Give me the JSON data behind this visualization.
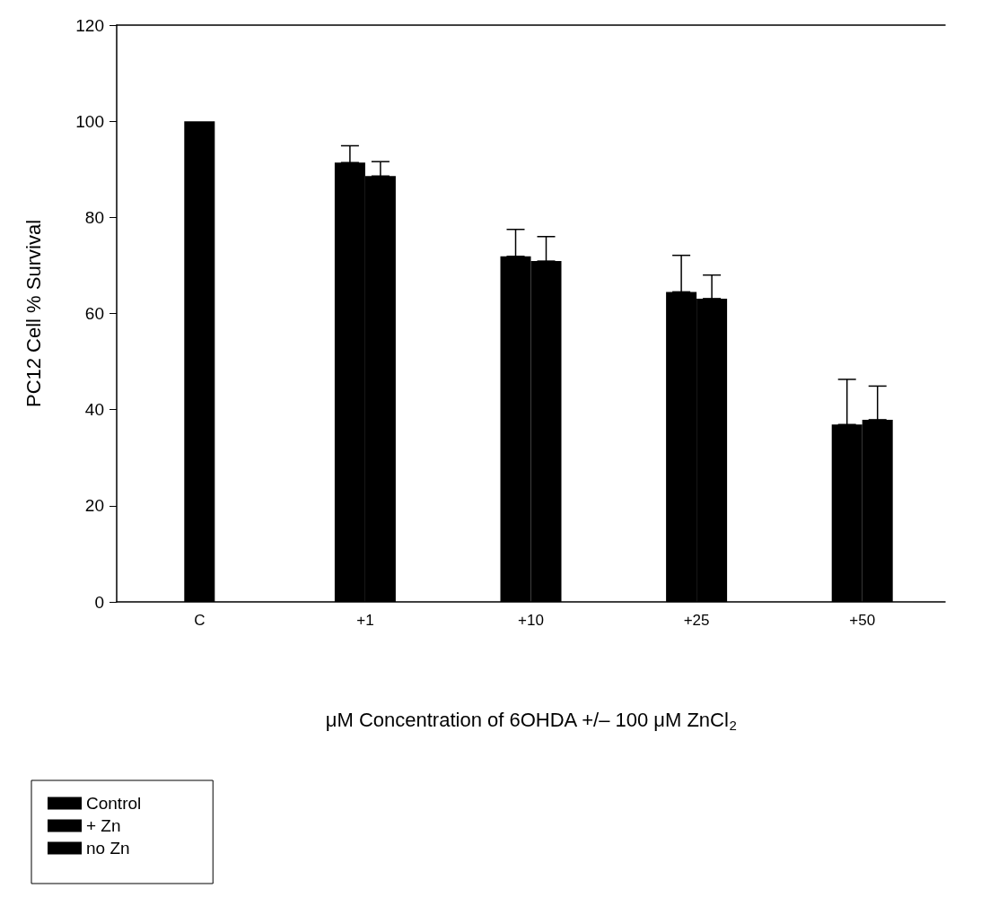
{
  "chart_data": {
    "type": "bar",
    "xlabel": "μM Concentration of 6OHDA +/– 100 μM ZnCl$_{2}$",
    "ylabel": "PC12 Cell % Survival",
    "categories": [
      "C",
      "+1",
      "+10",
      "+25",
      "+50"
    ],
    "series": [
      {
        "name": "Control",
        "color": "#000000",
        "values": [
          100,
          null,
          null,
          null,
          null
        ]
      },
      {
        "name": "+ Zn",
        "color": "#000000",
        "values": [
          null,
          91.4,
          71.9,
          64.5,
          36.9
        ],
        "errors": [
          null,
          [
            91.4,
            94.9
          ],
          [
            71.9,
            77.5
          ],
          [
            64.5,
            72.1
          ],
          [
            36.9,
            46.3
          ]
        ]
      },
      {
        "name": "no Zn",
        "color": "#000000",
        "values": [
          null,
          88.6,
          70.9,
          63.1,
          37.9
        ],
        "errors": [
          null,
          [
            88.6,
            91.6
          ],
          [
            70.9,
            76.0
          ],
          [
            63.1,
            68.0
          ],
          [
            37.9,
            44.9
          ]
        ]
      }
    ],
    "ylim": [
      0,
      120
    ],
    "yticks": [
      0,
      20,
      40,
      60,
      80,
      100,
      120
    ],
    "grid": false,
    "legend": "bottom left"
  }
}
